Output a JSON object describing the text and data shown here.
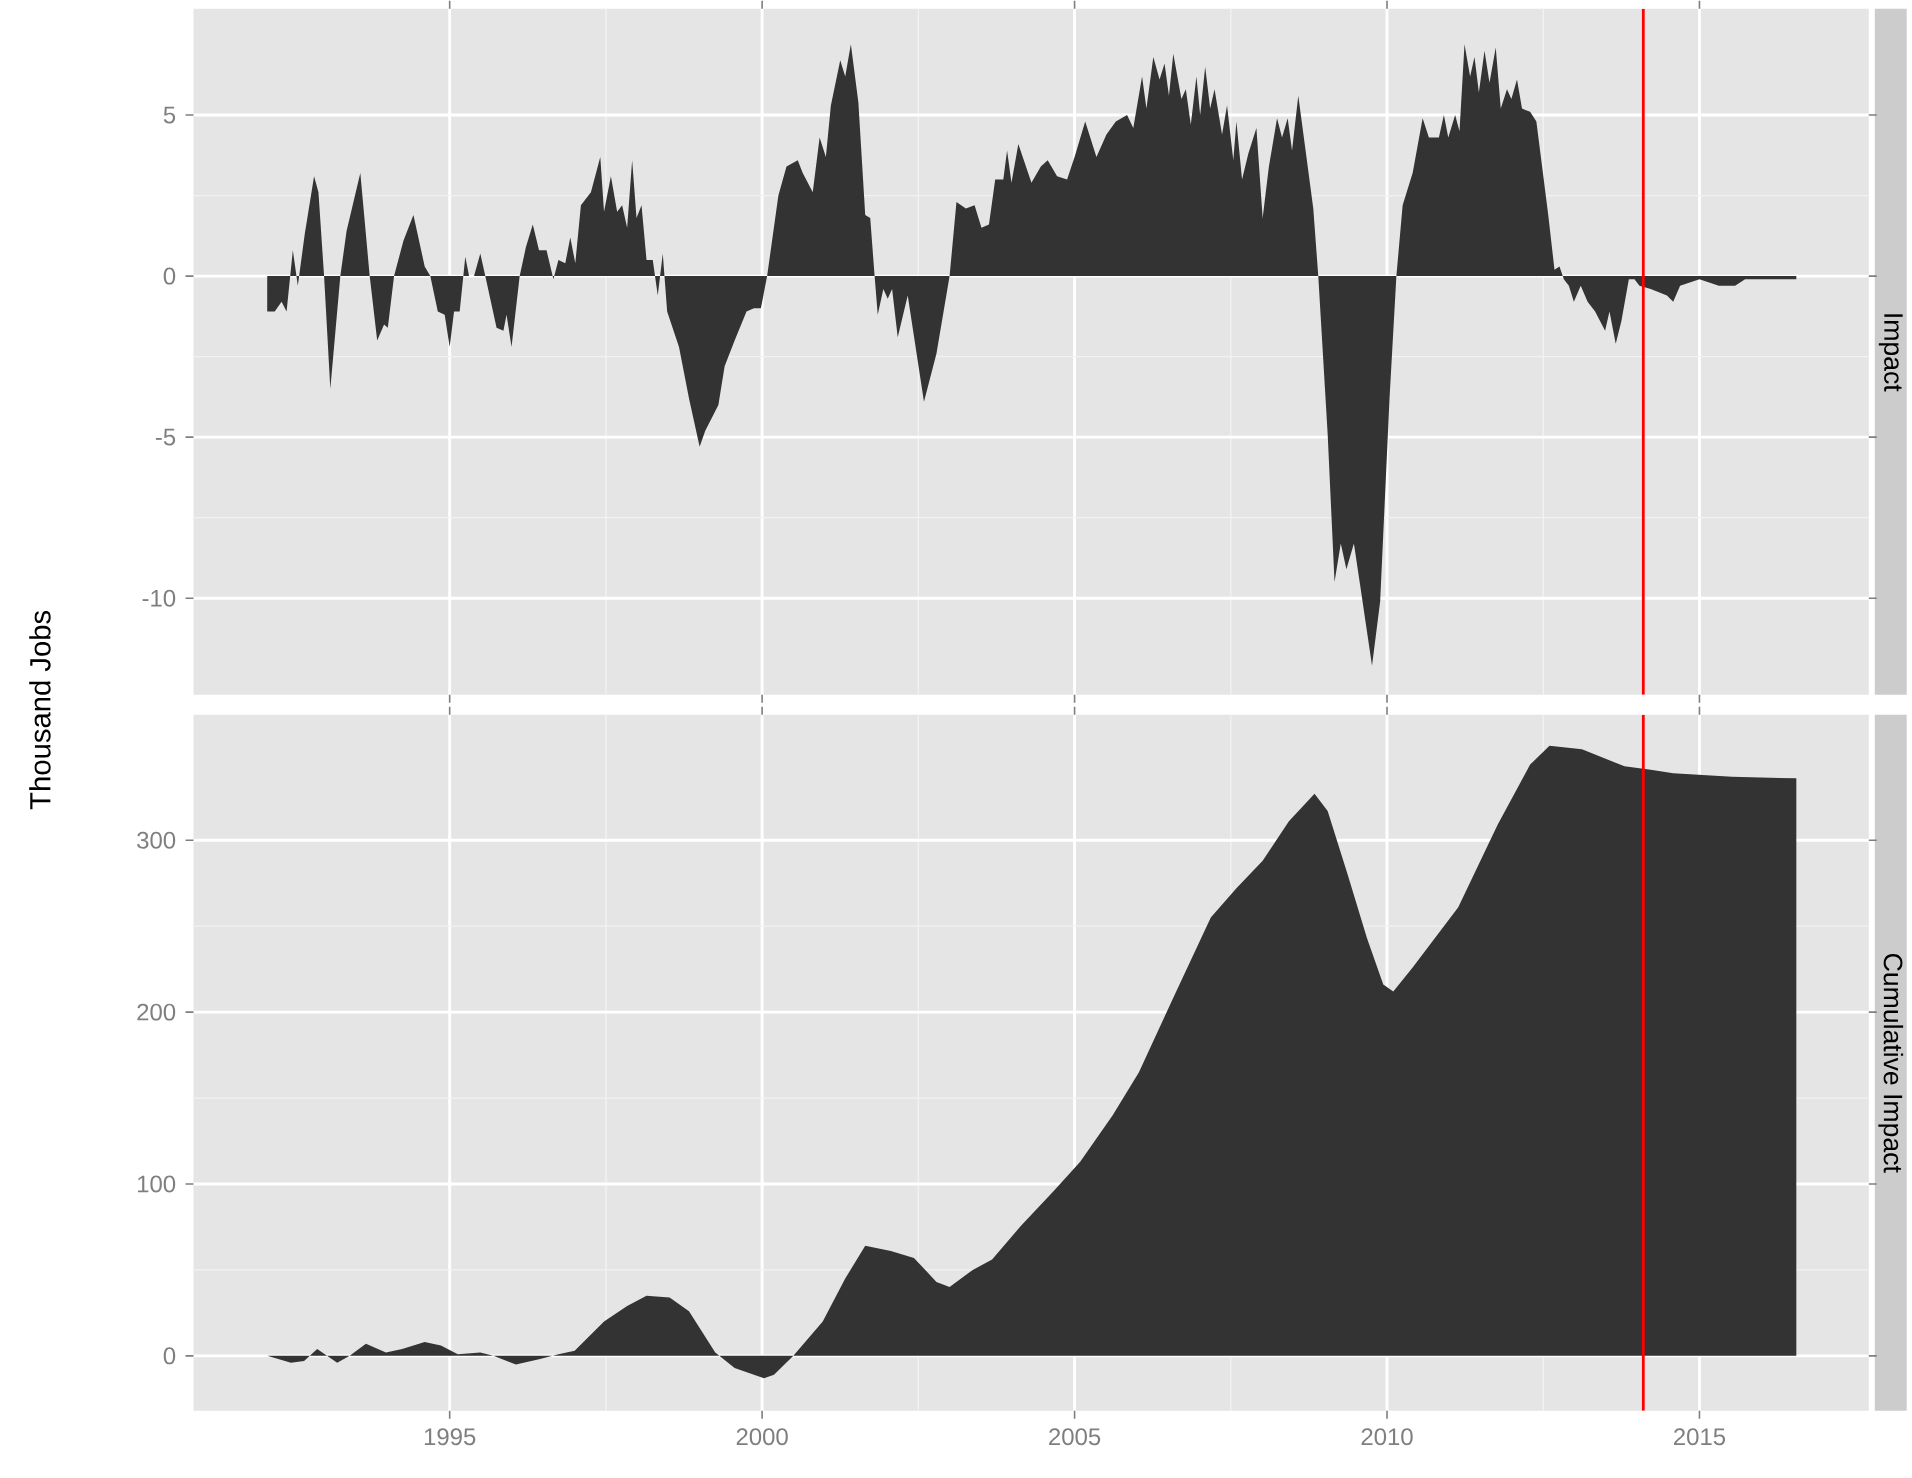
{
  "chart_data": [
    {
      "type": "area",
      "title": "Impact",
      "ylabel": "Thousand Jobs",
      "color": "#333333",
      "grid": true,
      "tick_labels": "y",
      "xlim": [
        1990.9,
        2017.71
      ],
      "ylim": [
        -13.0,
        8.3
      ],
      "xticks": [
        1995,
        2000,
        2005,
        2010,
        2015
      ],
      "yticks": [
        -10,
        -5,
        0,
        5
      ],
      "ref_lines": [
        {
          "axis": "x",
          "value": 2014.1,
          "color": "#ff0000"
        }
      ],
      "x": [
        1992.08,
        1992.2,
        1992.31,
        1992.39,
        1992.49,
        1992.57,
        1992.68,
        1992.83,
        1992.9,
        1992.99,
        1993.09,
        1993.25,
        1993.35,
        1993.46,
        1993.57,
        1993.72,
        1993.84,
        1993.95,
        1994.01,
        1994.11,
        1994.26,
        1994.42,
        1994.6,
        1994.69,
        1994.81,
        1994.92,
        1995.0,
        1995.07,
        1995.16,
        1995.25,
        1995.31,
        1995.39,
        1995.49,
        1995.57,
        1995.75,
        1995.86,
        1995.91,
        1995.99,
        1996.12,
        1996.22,
        1996.33,
        1996.43,
        1996.55,
        1996.66,
        1996.74,
        1996.85,
        1996.93,
        1997.01,
        1997.1,
        1997.26,
        1997.41,
        1997.47,
        1997.58,
        1997.68,
        1997.76,
        1997.84,
        1997.92,
        1997.99,
        1998.07,
        1998.15,
        1998.25,
        1998.33,
        1998.41,
        1998.48,
        1998.67,
        1998.83,
        1999.0,
        1999.09,
        1999.3,
        1999.4,
        1999.56,
        1999.75,
        1999.87,
        1999.98,
        2000.08,
        2000.26,
        2000.39,
        2000.57,
        2000.65,
        2000.81,
        2000.92,
        2001.02,
        2001.1,
        2001.25,
        2001.33,
        2001.42,
        2001.54,
        2001.65,
        2001.73,
        2001.8,
        2001.85,
        2001.94,
        2002.01,
        2002.08,
        2002.17,
        2002.33,
        2002.59,
        2002.79,
        2003.0,
        2003.11,
        2003.26,
        2003.4,
        2003.51,
        2003.63,
        2003.73,
        2003.86,
        2003.92,
        2003.99,
        2004.1,
        2004.31,
        2004.46,
        2004.57,
        2004.72,
        2004.88,
        2005.0,
        2005.17,
        2005.35,
        2005.51,
        2005.66,
        2005.84,
        2005.94,
        2006.08,
        2006.15,
        2006.26,
        2006.36,
        2006.44,
        2006.51,
        2006.58,
        2006.71,
        2006.78,
        2006.86,
        2006.95,
        2007.01,
        2007.09,
        2007.17,
        2007.24,
        2007.36,
        2007.44,
        2007.54,
        2007.59,
        2007.68,
        2007.78,
        2007.91,
        2008.01,
        2008.11,
        2008.24,
        2008.32,
        2008.41,
        2008.48,
        2008.58,
        2008.69,
        2008.82,
        2008.9,
        2009.05,
        2009.16,
        2009.26,
        2009.35,
        2009.47,
        2009.57,
        2009.76,
        2009.89,
        2010.04,
        2010.15,
        2010.25,
        2010.41,
        2010.57,
        2010.67,
        2010.83,
        2010.91,
        2010.98,
        2011.09,
        2011.16,
        2011.24,
        2011.33,
        2011.4,
        2011.47,
        2011.56,
        2011.64,
        2011.74,
        2011.82,
        2011.92,
        2011.99,
        2012.08,
        2012.16,
        2012.29,
        2012.39,
        2012.58,
        2012.68,
        2012.76,
        2012.83,
        2012.91,
        2012.99,
        2013.1,
        2013.21,
        2013.33,
        2013.49,
        2013.56,
        2013.66,
        2013.75,
        2013.87,
        2013.96,
        2014.04,
        2014.22,
        2014.48,
        2014.58,
        2014.69,
        2015.0,
        2015.31,
        2015.57,
        2015.73,
        2016.04,
        2016.55
      ],
      "values": [
        -1.1,
        -1.1,
        -0.8,
        -1.1,
        0.8,
        -0.3,
        1.3,
        3.1,
        2.6,
        0,
        -3.5,
        0,
        1.4,
        2.3,
        3.2,
        0,
        -2.0,
        -1.5,
        -1.6,
        0,
        1.1,
        1.9,
        0.3,
        0,
        -1.1,
        -1.2,
        -2.2,
        -1.1,
        -1.1,
        0.6,
        0,
        0,
        0.7,
        0,
        -1.6,
        -1.7,
        -1.2,
        -2.2,
        0,
        0.9,
        1.6,
        0.8,
        0.8,
        -0.1,
        0.5,
        0.4,
        1.2,
        0.4,
        2.2,
        2.6,
        3.7,
        2.0,
        3.1,
        2.0,
        2.2,
        1.5,
        3.6,
        1.8,
        2.2,
        0.5,
        0.5,
        -0.6,
        0.7,
        -1.1,
        -2.2,
        -3.8,
        -5.3,
        -4.8,
        -4.0,
        -2.8,
        -2.0,
        -1.1,
        -1.0,
        -1.0,
        0,
        2.5,
        3.4,
        3.6,
        3.2,
        2.6,
        4.3,
        3.7,
        5.3,
        6.7,
        6.2,
        7.2,
        5.4,
        1.9,
        1.8,
        0,
        -1.2,
        -0.4,
        -0.7,
        -0.4,
        -1.9,
        -0.6,
        -3.9,
        -2.4,
        0,
        2.3,
        2.1,
        2.2,
        1.5,
        1.6,
        3.0,
        3.0,
        3.9,
        2.9,
        4.1,
        2.9,
        3.4,
        3.6,
        3.1,
        3.0,
        3.7,
        4.8,
        3.7,
        4.4,
        4.8,
        5.0,
        4.6,
        6.2,
        5.2,
        6.8,
        6.1,
        6.6,
        5.6,
        6.9,
        5.5,
        5.8,
        4.7,
        6.2,
        5.0,
        6.5,
        5.2,
        5.8,
        4.4,
        5.3,
        3.6,
        4.8,
        3.0,
        3.8,
        4.6,
        1.8,
        3.4,
        4.9,
        4.3,
        4.9,
        3.9,
        5.6,
        4.0,
        2.1,
        0,
        -4.9,
        -9.5,
        -8.3,
        -9.1,
        -8.3,
        -9.6,
        -12.1,
        -10.1,
        -3.8,
        0,
        2.2,
        3.2,
        4.9,
        4.3,
        4.3,
        5.0,
        4.3,
        5.0,
        4.5,
        7.2,
        6.2,
        6.8,
        5.7,
        7.0,
        6.0,
        7.1,
        5.2,
        5.8,
        5.5,
        6.1,
        5.2,
        5.1,
        4.8,
        1.9,
        0.2,
        0.3,
        -0.1,
        -0.3,
        -0.8,
        -0.3,
        -0.8,
        -1.1,
        -1.7,
        -1.1,
        -2.1,
        -1.4,
        -0.1,
        -0.1,
        -0.3,
        -0.4,
        -0.6,
        -0.8,
        -0.3,
        -0.1,
        -0.3,
        -0.3,
        -0.1,
        -0.1,
        -0.1
      ]
    },
    {
      "type": "area",
      "title": "Cumulative Impact",
      "color": "#333333",
      "grid": true,
      "xlim": [
        1990.9,
        2017.71
      ],
      "ylim": [
        -32,
        373
      ],
      "xticks": [
        1995,
        2000,
        2005,
        2010,
        2015
      ],
      "yticks": [
        0,
        100,
        200,
        300
      ],
      "ref_lines": [
        {
          "axis": "x",
          "value": 2014.1,
          "color": "#ff0000"
        }
      ],
      "x": [
        1992.08,
        1992.46,
        1992.67,
        1992.88,
        1993.04,
        1993.2,
        1993.4,
        1993.66,
        1993.98,
        1994.24,
        1994.6,
        1994.86,
        1995.13,
        1995.49,
        1995.7,
        1996.06,
        1996.43,
        1996.74,
        1997.0,
        1997.47,
        1997.84,
        1998.15,
        1998.52,
        1998.83,
        1999.25,
        1999.56,
        2000.03,
        2000.19,
        2000.5,
        2000.97,
        2001.33,
        2001.65,
        2002.06,
        2002.43,
        2002.79,
        2003.0,
        2003.37,
        2003.68,
        2004.15,
        2004.67,
        2005.09,
        2005.61,
        2006.03,
        2006.55,
        2007.18,
        2007.59,
        2008.01,
        2008.43,
        2008.84,
        2009.05,
        2009.37,
        2009.68,
        2009.94,
        2010.1,
        2010.41,
        2011.14,
        2011.77,
        2012.29,
        2012.6,
        2013.12,
        2013.8,
        2014.22,
        2014.58,
        2015.52,
        2016.55
      ],
      "values": [
        0,
        -4,
        -3,
        4,
        0,
        -4,
        0,
        7,
        2,
        4,
        8,
        6,
        1,
        2,
        0,
        -5,
        -2,
        1,
        3,
        20,
        29,
        35,
        34,
        26,
        2,
        -7,
        -13,
        -11,
        0,
        20,
        45,
        64,
        61,
        57,
        43,
        40,
        50,
        56,
        76,
        96,
        113,
        140,
        165,
        206,
        255,
        272,
        288,
        311,
        327,
        317,
        280,
        243,
        216,
        212,
        226,
        261,
        309,
        344,
        355,
        353,
        343,
        341,
        339,
        337,
        336
      ]
    }
  ]
}
